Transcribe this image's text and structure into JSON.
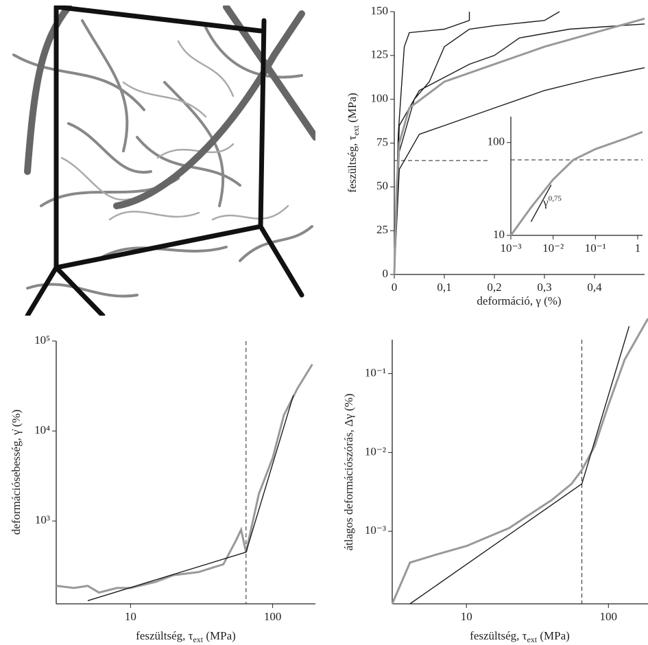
{
  "chart_data": [
    {
      "type": "line",
      "xlabel": [
        "deformáció, γ (%)"
      ],
      "ylabel": [
        "feszültség, τ",
        "ext",
        " (MPa)"
      ],
      "xlim": [
        0,
        0.5
      ],
      "ylim": [
        0,
        150
      ],
      "xticks": [
        0,
        {
          "value": 0.1,
          "label": "0,1"
        },
        {
          "value": 0.2,
          "label": "0,2"
        },
        {
          "value": 0.3,
          "label": "0,3"
        },
        {
          "value": 0.4,
          "label": "0,4"
        }
      ],
      "yticks": [
        0,
        25,
        50,
        75,
        100,
        125,
        150
      ],
      "hline": 65,
      "hline_xlim": [
        0,
        0.19
      ],
      "series": [
        {
          "color": "#1a1a1a",
          "x": [
            0,
            0.008,
            0.015,
            0.02,
            0.03,
            0.1,
            0.15,
            0.15
          ],
          "values": [
            0,
            80,
            110,
            130,
            138,
            140,
            145,
            150
          ]
        },
        {
          "color": "#1a1a1a",
          "x": [
            0,
            0.01,
            0.04,
            0.07,
            0.1,
            0.15,
            0.2,
            0.3,
            0.33
          ],
          "values": [
            0,
            70,
            100,
            110,
            130,
            140,
            142,
            145,
            150
          ]
        },
        {
          "color": "#1a1a1a",
          "x": [
            0,
            0.01,
            0.05,
            0.15,
            0.2,
            0.25,
            0.35,
            0.5
          ],
          "values": [
            0,
            85,
            105,
            120,
            125,
            135,
            140,
            143
          ]
        },
        {
          "color": "#1a1a1a",
          "x": [
            0,
            0.01,
            0.05,
            0.1,
            0.2,
            0.3,
            0.4,
            0.5
          ],
          "values": [
            0,
            60,
            80,
            85,
            95,
            105,
            112,
            118
          ]
        },
        {
          "color": "#999999",
          "x": [
            0,
            0.005,
            0.01,
            0.03,
            0.1,
            0.2,
            0.3,
            0.4,
            0.5
          ],
          "values": [
            0,
            50,
            75,
            95,
            110,
            120,
            130,
            138,
            146
          ]
        }
      ]
    },
    {
      "type": "line",
      "xscale": "log",
      "yscale": "log",
      "xlim": [
        0.001,
        1.3
      ],
      "ylim": [
        10,
        190
      ],
      "xticks": [
        {
          "value": 0.001,
          "label": "10⁻³"
        },
        {
          "value": 0.01,
          "label": "10⁻²"
        },
        {
          "value": 0.1,
          "label": "10⁻¹"
        },
        1
      ],
      "yticks": [
        10,
        100
      ],
      "hline": 65,
      "hline_xlim": [
        0.001,
        1.3
      ],
      "annotation": {
        "text": "γ",
        "sup": "0,75",
        "x": 0.005,
        "y": 22
      },
      "series": [
        {
          "color": "#999999",
          "x": [
            0.001,
            0.003,
            0.01,
            0.03,
            0.1,
            0.5,
            1.3
          ],
          "values": [
            10,
            20,
            40,
            65,
            85,
            110,
            130
          ]
        },
        {
          "color": "#1a1a1a",
          "x": [
            0.003,
            0.009
          ],
          "values": [
            14,
            35
          ]
        }
      ]
    },
    {
      "type": "line",
      "xscale": "log",
      "yscale": "log",
      "xlabel": [
        "feszültség, τ",
        "ext",
        " (MPa)"
      ],
      "ylabel": [
        "deformációsebesség, γ̇ (%)"
      ],
      "xlim": [
        3,
        200
      ],
      "ylim": [
        120,
        100000
      ],
      "xticks": [
        10,
        100
      ],
      "yticks": [
        {
          "value": 1000,
          "label": "10³"
        },
        {
          "value": 10000,
          "label": "10⁴"
        },
        {
          "value": 100000,
          "label": "10⁵"
        }
      ],
      "vline": 65,
      "series": [
        {
          "color": "#999999",
          "x": [
            3,
            4,
            5,
            6,
            8,
            10,
            15,
            20,
            30,
            45,
            55,
            60,
            65,
            80,
            100,
            120,
            150,
            190
          ],
          "values": [
            190,
            180,
            190,
            160,
            180,
            180,
            210,
            250,
            270,
            330,
            600,
            800,
            450,
            2000,
            5000,
            15000,
            30000,
            55000
          ]
        },
        {
          "color": "#1a1a1a",
          "x": [
            5,
            65,
            140
          ],
          "values": [
            130,
            450,
            25000
          ]
        }
      ]
    },
    {
      "type": "line",
      "xscale": "log",
      "yscale": "log",
      "xlabel": [
        "feszültség, τ",
        "ext",
        " (MPa)"
      ],
      "ylabel": [
        "átlagos deformációszórás, Δγ (%)"
      ],
      "xlim": [
        3,
        190
      ],
      "ylim": [
        0.00012,
        0.27
      ],
      "xticks": [
        10,
        100
      ],
      "yticks": [
        {
          "value": 0.001,
          "label": "10⁻³"
        },
        {
          "value": 0.01,
          "label": "10⁻²"
        },
        {
          "value": 0.1,
          "label": "10⁻¹"
        }
      ],
      "vline": 65,
      "series": [
        {
          "color": "#999999",
          "x": [
            3,
            4,
            6,
            10,
            20,
            40,
            55,
            65,
            80,
            100,
            130,
            190
          ],
          "values": [
            0.00012,
            0.0004,
            0.0005,
            0.00065,
            0.0011,
            0.0025,
            0.004,
            0.006,
            0.012,
            0.04,
            0.15,
            0.5
          ]
        },
        {
          "color": "#1a1a1a",
          "x": [
            4,
            65,
            140
          ],
          "values": [
            0.00012,
            0.004,
            0.4
          ]
        }
      ]
    }
  ]
}
